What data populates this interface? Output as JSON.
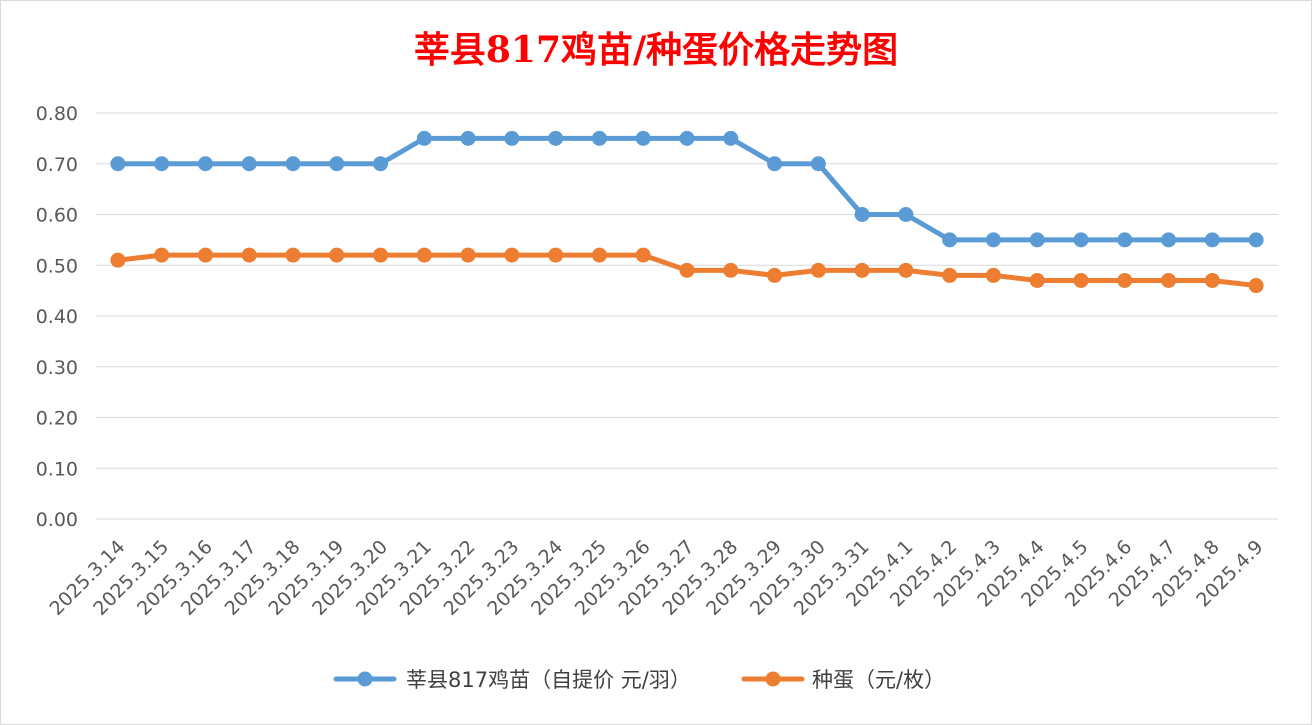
{
  "chart_data": {
    "type": "line",
    "title": "莘县817鸡苗/种蛋价格走势图",
    "title_color": "#ff0000",
    "xlabel": "",
    "ylabel": "",
    "ylim": [
      0,
      0.8
    ],
    "yticks": [
      "0.00",
      "0.10",
      "0.20",
      "0.30",
      "0.40",
      "0.50",
      "0.60",
      "0.70",
      "0.80"
    ],
    "grid": true,
    "legend_position": "bottom",
    "categories": [
      "2025.3.14",
      "2025.3.15",
      "2025.3.16",
      "2025.3.17",
      "2025.3.18",
      "2025.3.19",
      "2025.3.20",
      "2025.3.21",
      "2025.3.22",
      "2025.3.23",
      "2025.3.24",
      "2025.3.25",
      "2025.3.26",
      "2025.3.27",
      "2025.3.28",
      "2025.3.29",
      "2025.3.30",
      "2025.3.31",
      "2025.4.1",
      "2025.4.2",
      "2025.4.3",
      "2025.4.4",
      "2025.4.5",
      "2025.4.6",
      "2025.4.7",
      "2025.4.8",
      "2025.4.9"
    ],
    "series": [
      {
        "name": "莘县817鸡苗（自提价 元/羽）",
        "color": "#5b9bd5",
        "values": [
          0.7,
          0.7,
          0.7,
          0.7,
          0.7,
          0.7,
          0.7,
          0.75,
          0.75,
          0.75,
          0.75,
          0.75,
          0.75,
          0.75,
          0.75,
          0.7,
          0.7,
          0.6,
          0.6,
          0.55,
          0.55,
          0.55,
          0.55,
          0.55,
          0.55,
          0.55,
          0.55
        ]
      },
      {
        "name": "种蛋（元/枚）",
        "color": "#ed7d31",
        "values": [
          0.51,
          0.52,
          0.52,
          0.52,
          0.52,
          0.52,
          0.52,
          0.52,
          0.52,
          0.52,
          0.52,
          0.52,
          0.52,
          0.49,
          0.49,
          0.48,
          0.49,
          0.49,
          0.49,
          0.48,
          0.48,
          0.47,
          0.47,
          0.47,
          0.47,
          0.47,
          0.46
        ]
      }
    ]
  }
}
